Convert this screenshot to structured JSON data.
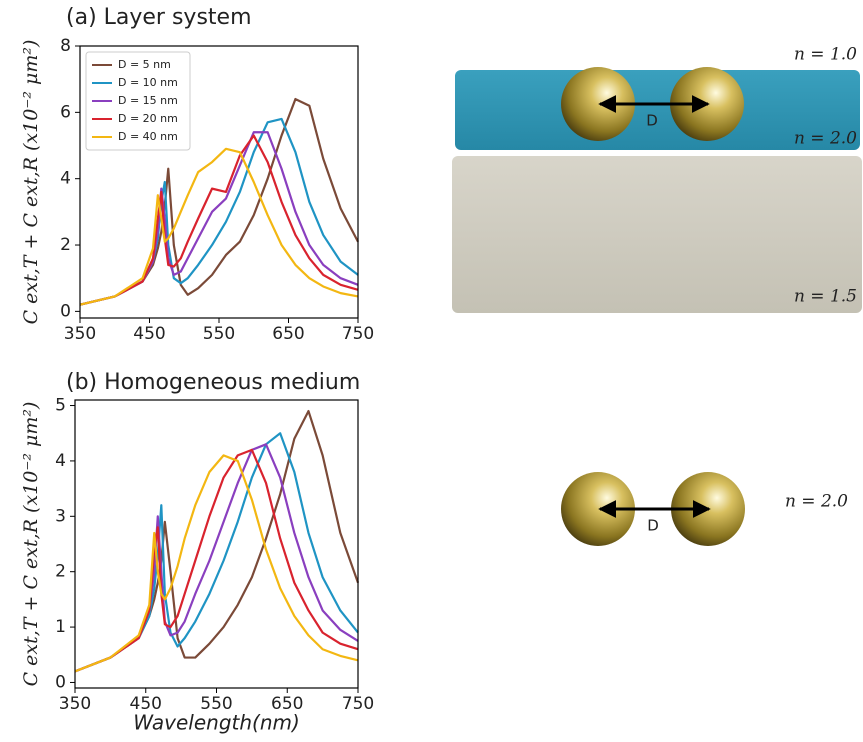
{
  "chart_data": [
    {
      "type": "line",
      "title": "(a) Layer system",
      "ylabel": "C ext,T + C ext,R (x10⁻² μm²)",
      "xlim": [
        350,
        750
      ],
      "xticks": [
        350,
        450,
        550,
        650,
        750
      ],
      "ylim": [
        -0.2,
        8
      ],
      "yticks": [
        0,
        2,
        4,
        6,
        8
      ],
      "legend": "upper left",
      "x": [
        350,
        400,
        440,
        455,
        462,
        467,
        472,
        477,
        485,
        495,
        505,
        520,
        540,
        560,
        580,
        600,
        620,
        640,
        660,
        680,
        700,
        725,
        750
      ],
      "series": [
        {
          "name": "D = 5 nm",
          "color": "#7b4a38",
          "values": [
            0.2,
            0.45,
            0.9,
            1.4,
            1.9,
            2.4,
            3.2,
            4.3,
            2.0,
            0.8,
            0.5,
            0.7,
            1.1,
            1.7,
            2.1,
            2.9,
            4.0,
            5.3,
            6.4,
            6.2,
            4.6,
            3.1,
            2.1
          ]
        },
        {
          "name": "D = 10 nm",
          "color": "#1f94c4",
          "values": [
            0.2,
            0.45,
            0.9,
            1.5,
            2.2,
            3.3,
            3.9,
            2.0,
            1.0,
            0.85,
            1.0,
            1.4,
            2.0,
            2.7,
            3.6,
            4.8,
            5.7,
            5.8,
            4.8,
            3.3,
            2.3,
            1.5,
            1.1
          ]
        },
        {
          "name": "D = 15 nm",
          "color": "#8a3fbf",
          "values": [
            0.2,
            0.45,
            0.9,
            1.5,
            2.4,
            3.7,
            2.8,
            1.6,
            1.1,
            1.2,
            1.6,
            2.2,
            3.0,
            3.4,
            4.4,
            5.4,
            5.4,
            4.3,
            3.0,
            2.0,
            1.4,
            1.0,
            0.8
          ]
        },
        {
          "name": "D = 20 nm",
          "color": "#d9232e",
          "values": [
            0.2,
            0.45,
            0.9,
            1.6,
            2.8,
            3.6,
            2.2,
            1.4,
            1.35,
            1.6,
            2.1,
            2.8,
            3.7,
            3.6,
            4.7,
            5.3,
            4.5,
            3.3,
            2.3,
            1.6,
            1.1,
            0.8,
            0.65
          ]
        },
        {
          "name": "D = 40 nm",
          "color": "#f3b712",
          "values": [
            0.2,
            0.45,
            1.0,
            1.9,
            3.5,
            2.8,
            2.1,
            2.2,
            2.5,
            3.0,
            3.5,
            4.2,
            4.5,
            4.9,
            4.8,
            3.9,
            2.9,
            2.0,
            1.4,
            1.0,
            0.75,
            0.55,
            0.45
          ]
        }
      ]
    },
    {
      "type": "line",
      "title": "(b) Homogeneous medium",
      "ylabel": "C ext,T + C ext,R (x10⁻² μm²)",
      "xlabel": "Wavelength(nm)",
      "xlim": [
        350,
        750
      ],
      "xticks": [
        350,
        450,
        550,
        650,
        750
      ],
      "ylim": [
        -0.1,
        5.1
      ],
      "yticks": [
        0,
        1,
        2,
        3,
        4,
        5
      ],
      "x": [
        350,
        400,
        440,
        455,
        462,
        467,
        472,
        477,
        485,
        495,
        505,
        520,
        540,
        560,
        580,
        600,
        620,
        640,
        660,
        680,
        700,
        725,
        750
      ],
      "series": [
        {
          "color": "#7b4a38",
          "values": [
            0.2,
            0.45,
            0.8,
            1.2,
            1.5,
            1.8,
            2.2,
            2.9,
            2.0,
            0.8,
            0.45,
            0.45,
            0.7,
            1.0,
            1.4,
            1.9,
            2.6,
            3.4,
            4.4,
            4.9,
            4.1,
            2.7,
            1.8
          ]
        },
        {
          "color": "#1f94c4",
          "values": [
            0.2,
            0.45,
            0.8,
            1.2,
            1.7,
            2.3,
            3.2,
            1.6,
            0.9,
            0.65,
            0.8,
            1.1,
            1.6,
            2.2,
            2.9,
            3.7,
            4.3,
            4.5,
            3.8,
            2.7,
            1.9,
            1.3,
            0.9
          ]
        },
        {
          "color": "#8a3fbf",
          "values": [
            0.2,
            0.45,
            0.8,
            1.3,
            2.0,
            3.0,
            2.0,
            1.1,
            0.85,
            0.9,
            1.1,
            1.6,
            2.2,
            2.9,
            3.6,
            4.2,
            4.3,
            3.7,
            2.7,
            1.9,
            1.3,
            0.95,
            0.75
          ]
        },
        {
          "color": "#d9232e",
          "values": [
            0.2,
            0.45,
            0.8,
            1.3,
            2.4,
            2.8,
            1.6,
            1.05,
            1.0,
            1.2,
            1.6,
            2.2,
            3.0,
            3.7,
            4.1,
            4.2,
            3.6,
            2.6,
            1.8,
            1.3,
            0.9,
            0.7,
            0.6
          ]
        },
        {
          "color": "#f3b712",
          "values": [
            0.2,
            0.45,
            0.85,
            1.4,
            2.7,
            2.0,
            1.6,
            1.5,
            1.7,
            2.1,
            2.6,
            3.2,
            3.8,
            4.1,
            4.0,
            3.3,
            2.4,
            1.7,
            1.2,
            0.85,
            0.6,
            0.48,
            0.4
          ]
        }
      ]
    }
  ],
  "illustrations": {
    "layer_system": {
      "top_index": "n = 1.0",
      "layer_index": "n = 2.0",
      "substrate_index": "n = 1.5",
      "separation": "D"
    },
    "homogeneous": {
      "medium_index": "n = 2.0",
      "separation": "D"
    }
  }
}
